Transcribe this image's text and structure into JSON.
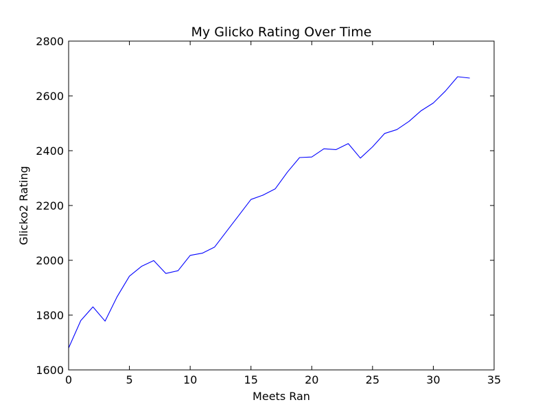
{
  "chart_data": {
    "type": "line",
    "title": "My Glicko Rating Over Time",
    "xlabel": "Meets Ran",
    "ylabel": "Glicko2 Rating",
    "xlim": [
      0,
      35
    ],
    "ylim": [
      1600,
      2800
    ],
    "xticks": [
      0,
      5,
      10,
      15,
      20,
      25,
      30,
      35
    ],
    "yticks": [
      1600,
      1800,
      2000,
      2200,
      2400,
      2600,
      2800
    ],
    "grid": false,
    "line_color": "#0000ff",
    "series": [
      {
        "x": [
          0,
          1,
          2,
          3,
          4,
          5,
          6,
          7,
          8,
          9,
          10,
          11,
          12,
          13,
          14,
          15,
          16,
          17,
          18,
          19,
          20,
          21,
          22,
          23,
          24,
          25,
          26,
          27,
          28,
          29,
          30,
          31,
          32,
          33
        ],
        "values": [
          1680,
          1780,
          1830,
          1778,
          1868,
          1942,
          1978,
          1999,
          1952,
          1962,
          2018,
          2026,
          2048,
          2106,
          2164,
          2222,
          2238,
          2261,
          2322,
          2375,
          2377,
          2407,
          2404,
          2426,
          2373,
          2414,
          2463,
          2477,
          2507,
          2546,
          2574,
          2618,
          2670,
          2665
        ]
      }
    ]
  }
}
